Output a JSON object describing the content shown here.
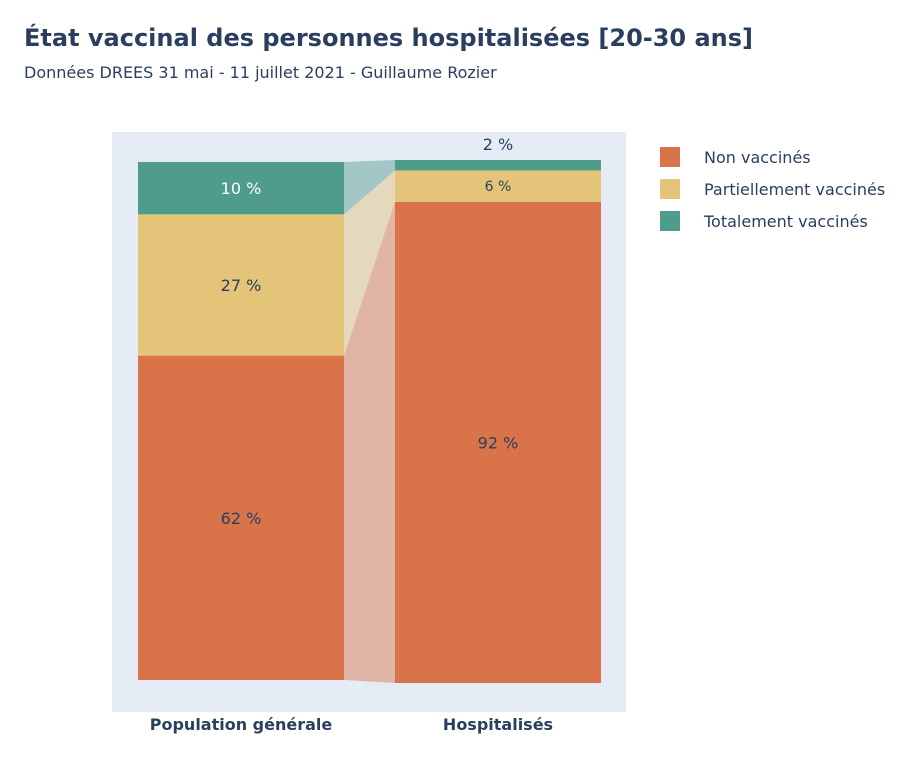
{
  "header": {
    "title": "État vaccinal des personnes hospitalisées [20-30 ans]",
    "subtitle": "Données DREES 31 mai - 11 juillet 2021 - Guillaume Rozier"
  },
  "colors": {
    "non_vaccines": "#d9744a",
    "partiellement": "#e3c478",
    "totalement": "#4f9c8c",
    "plot_bg": "#e5ecf6"
  },
  "chart_data": {
    "type": "bar",
    "stacked": true,
    "normalized": true,
    "categories": [
      "Population générale",
      "Hospitalisés"
    ],
    "series": [
      {
        "name": "Non vaccinés",
        "values": [
          62,
          92
        ],
        "labels": [
          "62 %",
          "92 %"
        ],
        "color": "#d9744a"
      },
      {
        "name": "Partiellement vaccinés",
        "values": [
          27,
          6
        ],
        "labels": [
          "27 %",
          "6 %"
        ],
        "color": "#e3c478"
      },
      {
        "name": "Totalement vaccinés",
        "values": [
          10,
          2
        ],
        "labels": [
          "10 %",
          "2 %"
        ],
        "color": "#4f9c8c"
      }
    ],
    "ylim": [
      0,
      100
    ],
    "legend_position": "top-right",
    "connectors": true
  }
}
